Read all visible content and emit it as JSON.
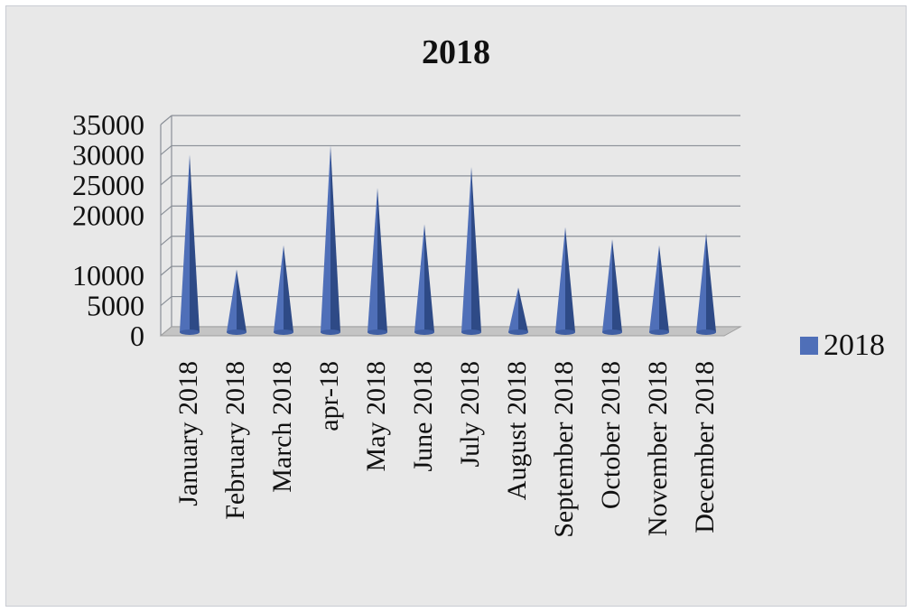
{
  "chart_data": {
    "type": "bar",
    "title": "2018",
    "xlabel": "",
    "ylabel": "",
    "categories": [
      "January 2018",
      "February 2018",
      "March 2018",
      "apr-18",
      "May 2018",
      "June 2018",
      "July 2018",
      "August 2018",
      "September 2018",
      "October 2018",
      "November 2018",
      "December 2018"
    ],
    "series": [
      {
        "name": "2018",
        "values": [
          30000,
          11000,
          15000,
          31500,
          24500,
          18500,
          28000,
          8000,
          18000,
          16000,
          15000,
          17000
        ]
      }
    ],
    "y_tick_labels": [
      "0",
      "5000",
      "10000",
      "",
      "20000",
      "25000",
      "30000",
      "35000"
    ],
    "ylim": [
      0,
      35000
    ],
    "grid": true,
    "legend": "right",
    "series_color": "#4f6fb8"
  }
}
